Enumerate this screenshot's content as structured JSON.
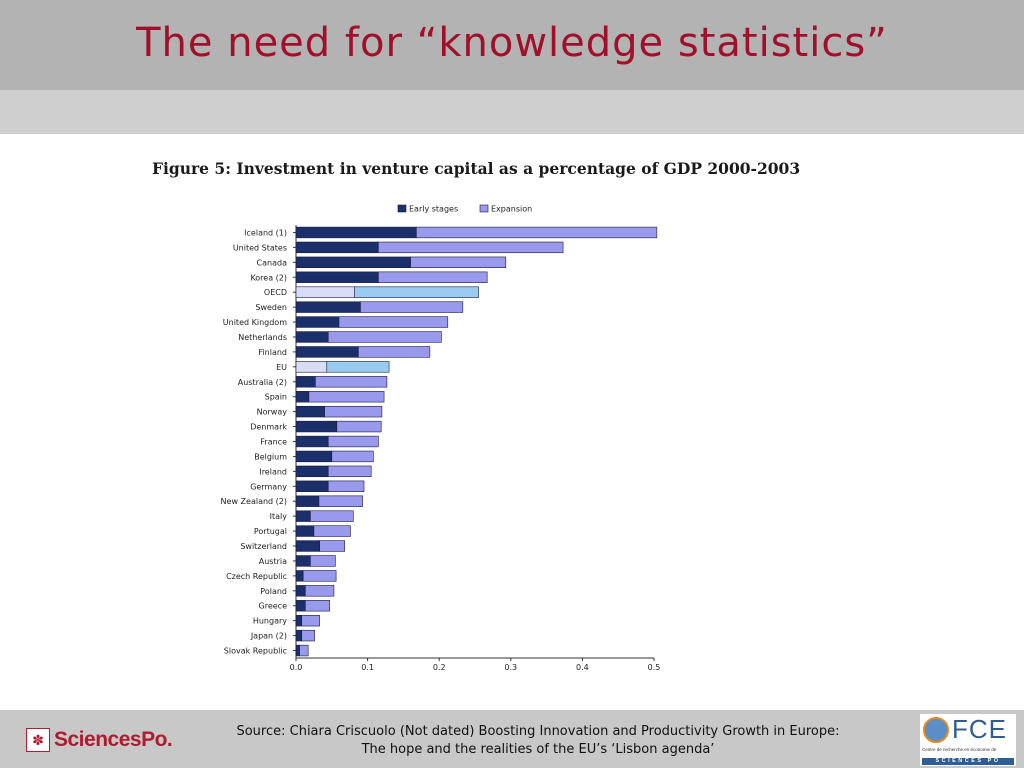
{
  "slide": {
    "title": "The need for “knowledge statistics”",
    "source_line1": "Source: Chiara Criscuolo  (Not dated) Boosting Innovation and Productivity Growth in Europe:",
    "source_line2": "The hope and the realities of the EU’s ‘Lisbon agenda’",
    "logo_left_text": "SciencesPo.",
    "logo_right_text": "FCE",
    "logo_right_sub": "Centre de recherche en économie de",
    "logo_right_band": "SCIENCES PO"
  },
  "chart_data": {
    "type": "bar",
    "orientation": "horizontal",
    "stacked": true,
    "title": "Figure 5: Investment in venture capital as a percentage of GDP 2000-2003",
    "xlim": [
      0,
      0.5
    ],
    "xticks": [
      "0.0",
      "0.1",
      "0.2",
      "0.3",
      "0.4",
      "0.5"
    ],
    "legend_position": "top",
    "categories": [
      "Iceland (1)",
      "United States",
      "Canada",
      "Korea (2)",
      "OECD",
      "Sweden",
      "United Kingdom",
      "Netherlands",
      "Finland",
      "EU",
      "Australia (2)",
      "Spain",
      "Norway",
      "Denmark",
      "France",
      "Belgium",
      "Ireland",
      "Germany",
      "New Zealand (2)",
      "Italy",
      "Portugal",
      "Switzerland",
      "Austria",
      "Czech Republic",
      "Poland",
      "Greece",
      "Hungary",
      "Japan (2)",
      "Slovak Republic"
    ],
    "highlighted": [
      "OECD",
      "EU"
    ],
    "series": [
      {
        "name": "Early stages",
        "color": "#1b2f6b",
        "highlight_color": "#d8dcf5",
        "values": [
          0.168,
          0.115,
          0.16,
          0.115,
          0.082,
          0.09,
          0.06,
          0.045,
          0.087,
          0.043,
          0.027,
          0.018,
          0.04,
          0.057,
          0.045,
          0.05,
          0.045,
          0.045,
          0.032,
          0.02,
          0.025,
          0.033,
          0.02,
          0.01,
          0.013,
          0.013,
          0.008,
          0.008,
          0.005
        ]
      },
      {
        "name": "Expansion",
        "color": "#9999ee",
        "highlight_color": "#99ccf0",
        "values": [
          0.336,
          0.258,
          0.133,
          0.152,
          0.173,
          0.143,
          0.152,
          0.158,
          0.1,
          0.087,
          0.1,
          0.105,
          0.08,
          0.062,
          0.07,
          0.058,
          0.06,
          0.05,
          0.061,
          0.06,
          0.051,
          0.035,
          0.035,
          0.046,
          0.04,
          0.034,
          0.025,
          0.018,
          0.012
        ]
      }
    ]
  }
}
